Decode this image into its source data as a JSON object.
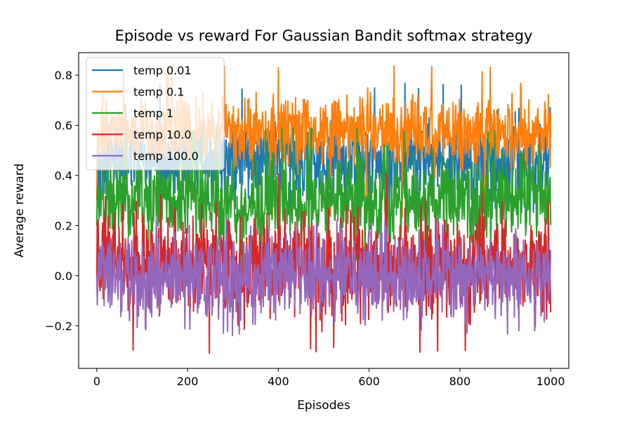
{
  "chart_data": {
    "type": "line",
    "title": "Episode vs reward For Gaussian Bandit softmax strategy",
    "xlabel": "Episodes",
    "ylabel": "Average reward",
    "xlim": [
      -40,
      1040
    ],
    "ylim": [
      -0.37,
      0.89
    ],
    "x_ticks": [
      0,
      200,
      400,
      600,
      800,
      1000
    ],
    "x_tick_labels": [
      "0",
      "200",
      "400",
      "600",
      "800",
      "1000"
    ],
    "y_ticks": [
      -0.2,
      0.0,
      0.2,
      0.4,
      0.6,
      0.8
    ],
    "y_tick_labels": [
      "−0.2",
      "0.0",
      "0.2",
      "0.4",
      "0.6",
      "0.8"
    ],
    "grid": false,
    "legend_position": "top-left",
    "episodes": 1000,
    "series": [
      {
        "name": "temp 0.01",
        "color": "#1f77b4",
        "mean": 0.46,
        "spread": 0.08,
        "min": 0.24,
        "max": 0.77,
        "start": 0.38
      },
      {
        "name": "temp 0.1",
        "color": "#ff7f0e",
        "mean": 0.57,
        "spread": 0.07,
        "min": 0.22,
        "max": 0.84,
        "start": 0.3
      },
      {
        "name": "temp 1",
        "color": "#2ca02c",
        "mean": 0.3,
        "spread": 0.085,
        "min": 0.0,
        "max": 0.6,
        "start": 0.2
      },
      {
        "name": "temp 10.0",
        "color": "#d62728",
        "mean": 0.05,
        "spread": 0.105,
        "min": -0.31,
        "max": 0.43,
        "start": 0.0
      },
      {
        "name": "temp 100.0",
        "color": "#9467bd",
        "mean": 0.0,
        "spread": 0.085,
        "min": -0.24,
        "max": 0.24,
        "start": 0.0
      }
    ]
  }
}
